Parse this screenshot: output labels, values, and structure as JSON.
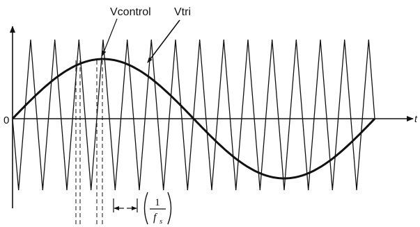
{
  "labels": {
    "vcontrol": "Vcontrol",
    "vtri": "Vtri",
    "origin": "0",
    "time_axis": "t",
    "period_numerator": "1",
    "period_denominator": "f",
    "period_subscript": "s"
  },
  "waveforms": {
    "triangle_periods": 15,
    "control_periods": 1
  },
  "colors": {
    "ink": "#111111",
    "background": "#ffffff"
  }
}
